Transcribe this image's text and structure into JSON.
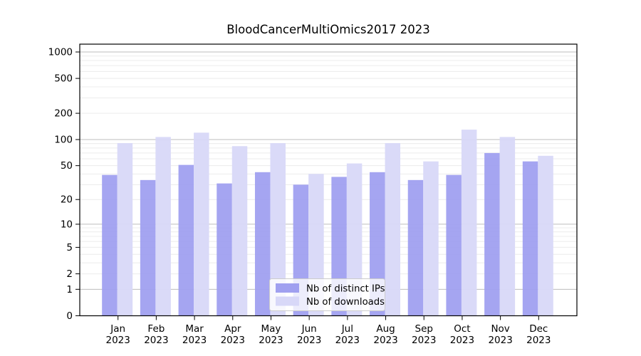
{
  "title": "BloodCancerMultiOmics2017 2023",
  "colors": {
    "background": "#ffffff",
    "axis": "#000000",
    "grid_major": "#bdbdbd",
    "grid_minor": "#ececec",
    "legend_border": "#cccccc",
    "legend_fill": "#ffffff"
  },
  "legend": {
    "items": [
      {
        "label": "Nb of distinct IPs",
        "color": "#a0a0f0"
      },
      {
        "label": "Nb of downloads",
        "color": "#d8d8f8"
      }
    ]
  },
  "chart_data": {
    "type": "bar",
    "title": "BloodCancerMultiOmics2017 2023",
    "categories": [
      "Jan 2023",
      "Feb 2023",
      "Mar 2023",
      "Apr 2023",
      "May 2023",
      "Jun 2023",
      "Jul 2023",
      "Aug 2023",
      "Sep 2023",
      "Oct 2023",
      "Nov 2023",
      "Dec 2023"
    ],
    "series": [
      {
        "name": "Nb of distinct IPs",
        "color": "#a0a0f0",
        "values": [
          39,
          34,
          51,
          31,
          42,
          30,
          37,
          42,
          34,
          39,
          70,
          56
        ]
      },
      {
        "name": "Nb of downloads",
        "color": "#d8d8f8",
        "values": [
          91,
          107,
          120,
          84,
          91,
          40,
          53,
          91,
          56,
          130,
          107,
          65
        ]
      }
    ],
    "xlabel": "",
    "ylabel": "",
    "yscale": "log1p",
    "yticks": [
      0,
      1,
      2,
      5,
      10,
      20,
      50,
      100,
      200,
      500,
      1000
    ],
    "ylim": [
      0,
      1228
    ],
    "grid": "on",
    "legend_position": "lower center"
  }
}
